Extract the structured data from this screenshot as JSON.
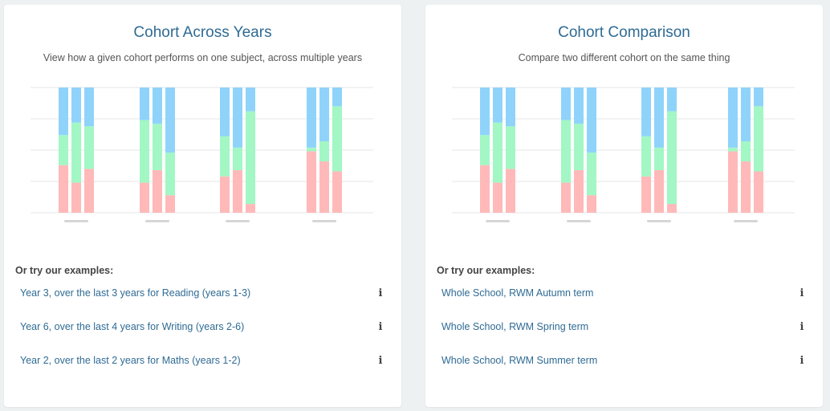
{
  "colors": {
    "bottom": "#ffb9b9",
    "middle": "#a2f7c4",
    "top": "#8fd3fb",
    "gridline": "#e6e6e6",
    "axis_tick": "#d6d6d6"
  },
  "cards": [
    {
      "title": "Cohort Across Years",
      "subtitle": "View how a given cohort performs on one subject, across multiple years",
      "examples_heading": "Or try our examples:",
      "examples": [
        {
          "label": "Year 3, over the last 3 years for Reading (years 1-3)",
          "icon": "info-icon"
        },
        {
          "label": "Year 6, over the last 4 years for Writing (years 2-6)",
          "icon": "info-icon"
        },
        {
          "label": "Year 2, over the last 2 years for Maths (years 1-2)",
          "icon": "info-icon"
        }
      ]
    },
    {
      "title": "Cohort Comparison",
      "subtitle": "Compare two different cohort on the same thing",
      "examples_heading": "Or try our examples:",
      "examples": [
        {
          "label": "Whole School, RWM Autumn term",
          "icon": "info-icon"
        },
        {
          "label": "Whole School, RWM Spring term",
          "icon": "info-icon"
        },
        {
          "label": "Whole School, RWM Summer term",
          "icon": "info-icon"
        }
      ]
    }
  ],
  "chart_data": {
    "type": "bar",
    "stacked": true,
    "ylim": [
      0,
      100
    ],
    "grid": true,
    "groups": [
      {
        "bars": [
          [
            38,
            24,
            38
          ],
          [
            24,
            48,
            28
          ],
          [
            35,
            34,
            31
          ]
        ]
      },
      {
        "bars": [
          [
            24,
            50,
            26
          ],
          [
            34,
            37,
            29
          ],
          [
            14,
            34,
            52
          ]
        ]
      },
      {
        "bars": [
          [
            29,
            32,
            39
          ],
          [
            34,
            18,
            48
          ],
          [
            7,
            74,
            19
          ]
        ]
      },
      {
        "bars": [
          [
            49,
            3,
            48
          ],
          [
            41,
            16,
            43
          ],
          [
            33,
            52,
            15
          ]
        ]
      }
    ]
  }
}
